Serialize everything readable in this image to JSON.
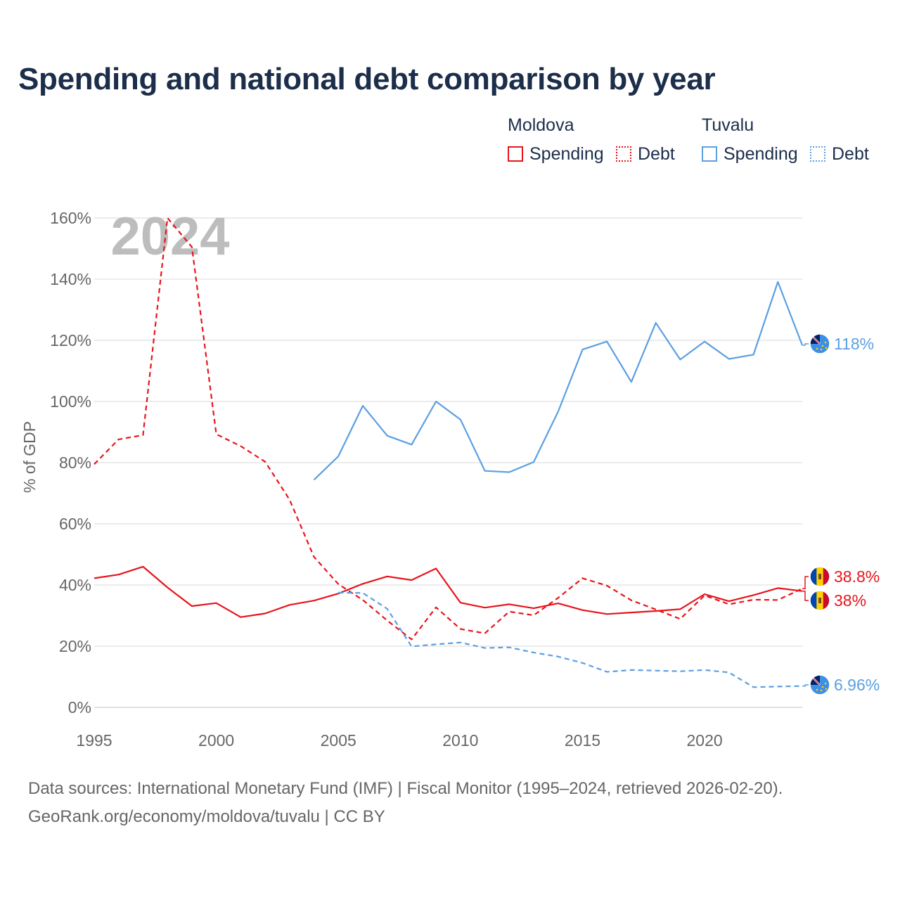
{
  "title": "Spending and national debt comparison by year",
  "legend": {
    "groups": [
      {
        "name": "Moldova",
        "color": "#e8141c",
        "items": [
          "Spending",
          "Debt"
        ]
      },
      {
        "name": "Tuvalu",
        "color": "#5b9fe2",
        "items": [
          "Spending",
          "Debt"
        ]
      }
    ]
  },
  "footer": {
    "line1": "Data sources: International Monetary Fund (IMF) | Fiscal Monitor (1995–2024, retrieved 2026-02-20).",
    "line2": "GeoRank.org/economy/moldova/tuvalu | CC BY"
  },
  "chart_data": {
    "type": "line",
    "year_watermark": "2024",
    "ylabel": "% of GDP",
    "xlim": [
      1995,
      2024
    ],
    "ylim": [
      0,
      160
    ],
    "yticks": [
      0,
      20,
      40,
      60,
      80,
      100,
      120,
      140,
      160
    ],
    "ytick_labels": [
      "0%",
      "20%",
      "40%",
      "60%",
      "80%",
      "100%",
      "120%",
      "140%",
      "160%"
    ],
    "xticks": [
      1995,
      2000,
      2005,
      2010,
      2015,
      2020
    ],
    "xtick_labels": [
      "1995",
      "2000",
      "2005",
      "2010",
      "2015",
      "2020"
    ],
    "series": [
      {
        "name": "Moldova Spending",
        "country": "Moldova",
        "measure": "Spending",
        "color": "#e8141c",
        "dash": "solid",
        "x": [
          1995,
          1996,
          1997,
          1998,
          1999,
          2000,
          2001,
          2002,
          2003,
          2004,
          2005,
          2006,
          2007,
          2008,
          2009,
          2010,
          2011,
          2012,
          2013,
          2014,
          2015,
          2016,
          2017,
          2018,
          2019,
          2020,
          2021,
          2022,
          2023,
          2024
        ],
        "values": [
          42.2,
          43.4,
          46.0,
          39.2,
          33.1,
          34.1,
          29.5,
          30.7,
          33.5,
          34.9,
          37.2,
          40.4,
          42.8,
          41.6,
          45.4,
          34.2,
          32.6,
          33.7,
          32.4,
          34.0,
          31.8,
          30.5,
          31.0,
          31.5,
          32.1,
          37.0,
          34.7,
          36.7,
          39.0,
          38.0
        ],
        "end_label": "38%"
      },
      {
        "name": "Moldova Debt",
        "country": "Moldova",
        "measure": "Debt",
        "color": "#e8141c",
        "dash": "dashed",
        "x": [
          1995,
          1996,
          1997,
          1998,
          1999,
          2000,
          2001,
          2002,
          2003,
          2004,
          2005,
          2006,
          2007,
          2008,
          2009,
          2010,
          2011,
          2012,
          2013,
          2014,
          2015,
          2016,
          2017,
          2018,
          2019,
          2020,
          2021,
          2022,
          2023,
          2024
        ],
        "values": [
          79.5,
          87.6,
          89.0,
          160.0,
          150.5,
          89.3,
          85.4,
          80.3,
          67.9,
          49.2,
          40.3,
          35.1,
          28.4,
          22.2,
          32.7,
          25.6,
          24.2,
          31.3,
          30.1,
          35.8,
          42.2,
          39.8,
          35.0,
          32.0,
          28.9,
          36.6,
          33.7,
          35.2,
          35.1,
          38.8
        ],
        "end_label": "38.8%"
      },
      {
        "name": "Tuvalu Spending",
        "country": "Tuvalu",
        "measure": "Spending",
        "color": "#5b9fe2",
        "dash": "solid",
        "x": [
          2004,
          2005,
          2006,
          2007,
          2008,
          2009,
          2010,
          2011,
          2012,
          2013,
          2014,
          2015,
          2016,
          2017,
          2018,
          2019,
          2020,
          2021,
          2022,
          2023,
          2024
        ],
        "values": [
          74.4,
          82.1,
          98.6,
          88.8,
          85.9,
          100.0,
          94.1,
          77.3,
          76.9,
          80.2,
          96.7,
          117.0,
          119.6,
          106.4,
          125.7,
          113.7,
          119.6,
          113.9,
          115.3,
          139.1,
          118.4
        ],
        "end_label": "118%"
      },
      {
        "name": "Tuvalu Debt",
        "country": "Tuvalu",
        "measure": "Debt",
        "color": "#5b9fe2",
        "dash": "dashed",
        "x": [
          2005,
          2006,
          2007,
          2008,
          2009,
          2010,
          2011,
          2012,
          2013,
          2014,
          2015,
          2016,
          2017,
          2018,
          2019,
          2020,
          2021,
          2022,
          2023,
          2024
        ],
        "values": [
          37.5,
          37.4,
          32.2,
          19.9,
          20.6,
          21.2,
          19.4,
          19.6,
          17.9,
          16.6,
          14.5,
          11.6,
          12.2,
          12.0,
          11.8,
          12.2,
          11.4,
          6.6,
          6.8,
          6.96
        ],
        "end_label": "6.96%"
      }
    ]
  }
}
